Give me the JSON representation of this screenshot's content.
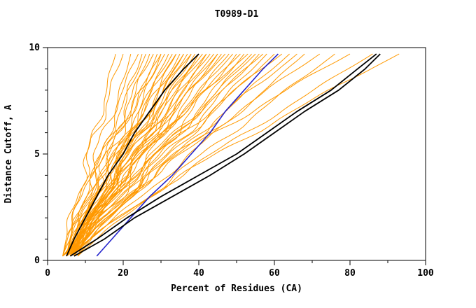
{
  "chart_data": {
    "type": "line",
    "title": "T0989-D1",
    "xlabel": "Percent of Residues (CA)",
    "ylabel": "Distance Cutoff, A",
    "xlim": [
      0,
      100
    ],
    "ylim": [
      0,
      10
    ],
    "x_ticks_major": [
      0,
      20,
      40,
      60,
      80,
      100
    ],
    "x_ticks_minor": [
      10,
      30,
      50,
      70,
      90
    ],
    "y_ticks_major": [
      0,
      5,
      10
    ],
    "y_ticks_minor": [
      1,
      2,
      3,
      4,
      6,
      7,
      8,
      9
    ],
    "grid": false,
    "legend": "none",
    "colors": {
      "models": "#FF9900",
      "highlight_black": "#000000",
      "highlight_blue": "#2222CC",
      "frame": "#000000"
    },
    "y_levels": [
      0.2,
      1,
      2,
      3,
      4,
      5,
      6,
      7,
      8,
      9,
      9.7
    ],
    "highlight_series": [
      {
        "name": "black-model-left",
        "color_key": "highlight_black",
        "x": [
          5,
          7,
          10,
          13,
          16,
          20,
          23,
          27,
          31,
          36,
          40
        ]
      },
      {
        "name": "black-model-right-1",
        "color_key": "highlight_black",
        "x": [
          6,
          13,
          21,
          30,
          40,
          50,
          58,
          66,
          75,
          82,
          87
        ]
      },
      {
        "name": "black-model-right-2",
        "color_key": "highlight_black",
        "x": [
          7,
          15,
          23,
          33,
          43,
          52,
          60,
          68,
          77,
          84,
          88
        ]
      },
      {
        "name": "blue-model",
        "color_key": "highlight_blue",
        "x": [
          13,
          17,
          22,
          27,
          33,
          38,
          43,
          47,
          52,
          57,
          61
        ]
      }
    ],
    "model_series_params": {
      "count": 55,
      "params_format": [
        "x_start",
        "x_end",
        "shape_exp",
        "wiggle_amp",
        "wiggle_phase"
      ],
      "params": [
        [
          5,
          18,
          1.1,
          1.0,
          0.5
        ],
        [
          4,
          20,
          1.2,
          1.2,
          1.1
        ],
        [
          6,
          22,
          0.9,
          0.8,
          2.0
        ],
        [
          5,
          24,
          1.3,
          1.0,
          0.3
        ],
        [
          7,
          25,
          1.0,
          1.5,
          1.7
        ],
        [
          4,
          26,
          1.1,
          0.7,
          2.5
        ],
        [
          6,
          27,
          0.95,
          1.1,
          0.9
        ],
        [
          5,
          28,
          1.25,
          1.3,
          1.4
        ],
        [
          8,
          29,
          1.05,
          0.9,
          2.2
        ],
        [
          5,
          30,
          1.15,
          1.2,
          0.1
        ],
        [
          6,
          30,
          0.85,
          1.0,
          1.9
        ],
        [
          4,
          31,
          1.2,
          1.4,
          2.8
        ],
        [
          7,
          32,
          1.0,
          0.8,
          0.7
        ],
        [
          5,
          33,
          1.1,
          1.1,
          1.2
        ],
        [
          6,
          34,
          1.3,
          0.9,
          2.6
        ],
        [
          4,
          34,
          0.9,
          1.3,
          0.4
        ],
        [
          8,
          35,
          1.05,
          1.0,
          1.6
        ],
        [
          5,
          36,
          1.2,
          1.2,
          2.9
        ],
        [
          6,
          36,
          1.0,
          0.7,
          0.8
        ],
        [
          7,
          37,
          1.15,
          1.5,
          1.3
        ],
        [
          4,
          38,
          0.95,
          1.0,
          2.1
        ],
        [
          5,
          38,
          1.25,
          0.9,
          0.2
        ],
        [
          6,
          39,
          1.05,
          1.1,
          1.8
        ],
        [
          8,
          40,
          1.1,
          1.3,
          2.4
        ],
        [
          5,
          40,
          0.9,
          0.8,
          0.6
        ],
        [
          4,
          41,
          1.2,
          1.0,
          1.5
        ],
        [
          6,
          42,
          1.0,
          1.2,
          2.7
        ],
        [
          7,
          42,
          1.3,
          0.9,
          1.0
        ],
        [
          5,
          43,
          1.05,
          1.4,
          0.35
        ],
        [
          6,
          44,
          1.15,
          0.8,
          1.85
        ],
        [
          4,
          45,
          0.95,
          1.1,
          2.55
        ],
        [
          8,
          45,
          1.2,
          1.0,
          0.95
        ],
        [
          5,
          46,
          1.0,
          1.3,
          1.45
        ],
        [
          6,
          47,
          1.25,
          0.9,
          2.35
        ],
        [
          7,
          48,
          1.05,
          1.2,
          0.15
        ],
        [
          5,
          49,
          1.1,
          1.0,
          1.65
        ],
        [
          4,
          50,
          0.9,
          1.4,
          2.85
        ],
        [
          6,
          51,
          1.2,
          0.8,
          0.55
        ],
        [
          8,
          52,
          1.0,
          1.1,
          1.95
        ],
        [
          5,
          53,
          1.3,
          1.0,
          2.65
        ],
        [
          6,
          54,
          1.05,
          1.2,
          0.75
        ],
        [
          7,
          55,
          1.15,
          0.9,
          1.25
        ],
        [
          4,
          56,
          0.95,
          1.3,
          2.15
        ],
        [
          5,
          57,
          1.2,
          1.0,
          0.45
        ],
        [
          6,
          58,
          1.0,
          1.1,
          1.75
        ],
        [
          8,
          60,
          1.1,
          0.9,
          2.45
        ],
        [
          5,
          62,
          1.25,
          1.2,
          1.05
        ],
        [
          6,
          64,
          1.05,
          1.0,
          1.55
        ],
        [
          7,
          66,
          1.15,
          1.3,
          2.75
        ],
        [
          5,
          68,
          0.95,
          0.8,
          0.25
        ],
        [
          6,
          72,
          1.2,
          1.1,
          1.35
        ],
        [
          8,
          76,
          1.05,
          1.0,
          2.05
        ],
        [
          5,
          80,
          1.3,
          1.2,
          0.85
        ],
        [
          6,
          86,
          1.1,
          0.9,
          1.15
        ],
        [
          7,
          93,
          1.2,
          1.0,
          2.3
        ]
      ]
    }
  }
}
